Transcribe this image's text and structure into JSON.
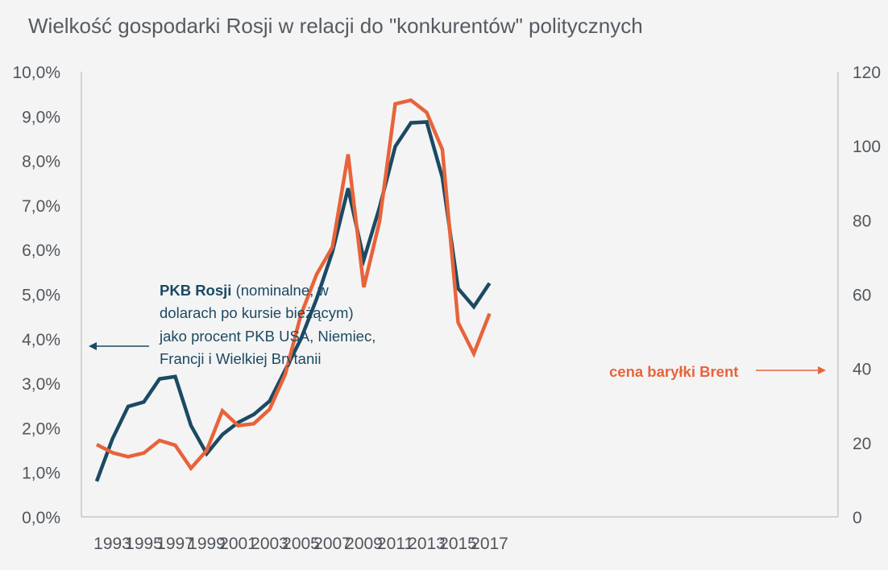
{
  "chart_data": {
    "type": "line",
    "title": "Wielkość gospodarki Rosji w relacji do \"konkurentów\" politycznych",
    "x": [
      1992,
      1993,
      1994,
      1995,
      1996,
      1997,
      1998,
      1999,
      2000,
      2001,
      2002,
      2003,
      2004,
      2005,
      2006,
      2007,
      2008,
      2009,
      2010,
      2011,
      2012,
      2013,
      2014,
      2015,
      2016,
      2017
    ],
    "x_tick_labels": [
      "1993",
      "1995",
      "1997",
      "1999",
      "2001",
      "2003",
      "2005",
      "2007",
      "2009",
      "2011",
      "2013",
      "2015",
      "2017"
    ],
    "y_left_ticks": [
      "0,0%",
      "1,0%",
      "2,0%",
      "3,0%",
      "4,0%",
      "5,0%",
      "6,0%",
      "7,0%",
      "8,0%",
      "9,0%",
      "10,0%"
    ],
    "y_left_lim": [
      0,
      10
    ],
    "y_right_ticks": [
      "0",
      "20",
      "40",
      "60",
      "80",
      "100",
      "120"
    ],
    "y_right_lim": [
      0,
      120
    ],
    "grid": false,
    "series": [
      {
        "axis": "left",
        "color": "#1b4a63",
        "values": [
          0.8,
          1.75,
          2.48,
          2.58,
          3.1,
          3.15,
          2.05,
          1.42,
          1.85,
          2.12,
          2.3,
          2.6,
          3.3,
          4.0,
          4.9,
          5.95,
          7.38,
          5.78,
          6.95,
          8.32,
          8.85,
          8.87,
          7.62,
          5.13,
          4.72,
          5.25
        ]
      },
      {
        "axis": "right",
        "color": "#e8633a",
        "values": [
          19.5,
          17.3,
          16.2,
          17.2,
          20.6,
          19.3,
          13.1,
          17.9,
          28.6,
          24.6,
          25.1,
          29.0,
          38.4,
          54.5,
          65.4,
          72.7,
          97.7,
          61.9,
          79.6,
          111.3,
          112.3,
          109.0,
          99.0,
          52.4,
          44.0,
          54.8
        ]
      }
    ],
    "annotations": {
      "left": {
        "bold": "PKB Rosji",
        "line1_rest": " (nominalne, w",
        "line2": "dolarach po kursie bieżącym)",
        "line3": "jako procent PKB USA, Niemiec,",
        "line4": "Francji i Wielkiej Brytanii",
        "color": "#1b4a63"
      },
      "right": {
        "text": "cena baryłki Brent",
        "color": "#e8633a"
      }
    }
  }
}
